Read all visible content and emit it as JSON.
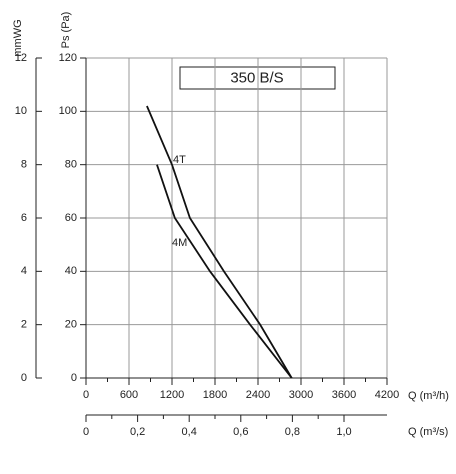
{
  "chart_data": {
    "type": "line",
    "title": "350 B/S",
    "y_label": "Ps (Pa)",
    "y2_label": "mmWG",
    "x_label": "Q (m³/h)",
    "x2_label": "Q (m³/s)",
    "xlim": [
      0,
      4200
    ],
    "xticks": [
      0,
      600,
      1200,
      1800,
      2400,
      3000,
      3600,
      4200
    ],
    "x2lim": [
      0,
      1.1667
    ],
    "x2ticks": [
      0,
      {
        "value": 0.2,
        "label": "0,2"
      },
      {
        "value": 0.4,
        "label": "0,4"
      },
      {
        "value": 0.6,
        "label": "0,6"
      },
      {
        "value": 0.8,
        "label": "0,8"
      },
      {
        "value": 1.0,
        "label": "1,0"
      }
    ],
    "ylim": [
      0,
      120
    ],
    "yticks": [
      0,
      20,
      40,
      60,
      80,
      100,
      120
    ],
    "y2lim": [
      0,
      12
    ],
    "y2ticks": [
      0,
      2,
      4,
      6,
      8,
      10,
      12
    ],
    "grid": true,
    "series": [
      {
        "name": "4T",
        "color": "#111111",
        "x": [
          850,
          1200,
          1450,
          1925,
          2430,
          2870
        ],
        "values": [
          102,
          80,
          60,
          40,
          20,
          0
        ]
      },
      {
        "name": "4M",
        "color": "#111111",
        "x": [
          990,
          1240,
          1730,
          2290,
          2870
        ],
        "values": [
          80,
          60,
          40,
          20,
          0
        ]
      }
    ]
  }
}
